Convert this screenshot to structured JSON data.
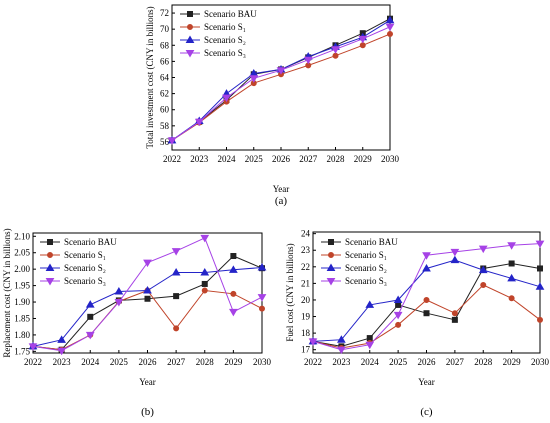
{
  "chart_data": [
    {
      "type": "line",
      "panel_label": "(a)",
      "xlabel": "Year",
      "ylabel": "Total investment cost (CNY in billions)",
      "x": [
        2022,
        2023,
        2024,
        2025,
        2026,
        2027,
        2028,
        2029,
        2030
      ],
      "ylim": [
        55,
        73
      ],
      "yticks": [
        56,
        58,
        60,
        62,
        64,
        66,
        68,
        70,
        72
      ],
      "legend_position": "top-left",
      "series": [
        {
          "name": "Scenario BAU",
          "color": "#222222",
          "marker": "square",
          "values": [
            56.2,
            58.5,
            61.2,
            64.4,
            65.0,
            66.5,
            68.0,
            69.5,
            71.3
          ]
        },
        {
          "name": "Scenario S₁",
          "color": "#c0442a",
          "marker": "circle",
          "values": [
            56.2,
            58.4,
            61.0,
            63.3,
            64.4,
            65.5,
            66.7,
            68.0,
            69.4
          ]
        },
        {
          "name": "Scenario S₂",
          "color": "#2424c8",
          "marker": "triangle-up",
          "values": [
            56.2,
            58.6,
            62.0,
            64.5,
            65.0,
            66.6,
            67.8,
            69.0,
            71.1
          ]
        },
        {
          "name": "Scenario S₃",
          "color": "#a642e6",
          "marker": "triangle-down",
          "values": [
            56.2,
            58.5,
            61.5,
            63.9,
            64.9,
            66.2,
            67.5,
            68.8,
            70.3
          ]
        }
      ]
    },
    {
      "type": "line",
      "panel_label": "(b)",
      "xlabel": "Year",
      "ylabel": "Replacement cost (CNY in billions)",
      "x": [
        2022,
        2023,
        2024,
        2025,
        2026,
        2027,
        2028,
        2029,
        2030
      ],
      "ylim": [
        1.745,
        2.11
      ],
      "yticks": [
        "1.75",
        "1.80",
        "1.85",
        "1.90",
        "1.95",
        "2.00",
        "2.05",
        "2.10"
      ],
      "legend_position": "top-left",
      "series": [
        {
          "name": "Scenario BAU",
          "color": "#222222",
          "marker": "square",
          "values": [
            1.765,
            1.755,
            1.855,
            1.905,
            1.91,
            1.918,
            1.955,
            2.04,
            2.003
          ]
        },
        {
          "name": "Scenario S₁",
          "color": "#c0442a",
          "marker": "circle",
          "values": [
            1.765,
            1.755,
            1.8,
            1.902,
            1.935,
            1.82,
            1.935,
            1.925,
            1.88
          ]
        },
        {
          "name": "Scenario S₂",
          "color": "#2424c8",
          "marker": "triangle-up",
          "values": [
            1.765,
            1.785,
            1.892,
            1.932,
            1.935,
            1.99,
            1.99,
            1.998,
            2.005
          ]
        },
        {
          "name": "Scenario S₃",
          "color": "#a642e6",
          "marker": "triangle-down",
          "values": [
            1.765,
            1.752,
            1.8,
            1.9,
            2.02,
            2.055,
            2.095,
            1.87,
            1.915
          ]
        }
      ]
    },
    {
      "type": "line",
      "panel_label": "(c)",
      "xlabel": "Year",
      "ylabel": "Fuel cost (CNY in billions)",
      "x": [
        2022,
        2023,
        2024,
        2025,
        2026,
        2027,
        2028,
        2029,
        2030
      ],
      "ylim": [
        16.8,
        24.1
      ],
      "yticks": [
        17,
        18,
        19,
        20,
        21,
        22,
        23,
        24
      ],
      "legend_position": "top-left",
      "series": [
        {
          "name": "Scenario BAU",
          "color": "#222222",
          "marker": "square",
          "values": [
            17.5,
            17.2,
            17.7,
            19.7,
            19.2,
            18.8,
            21.9,
            22.2,
            21.9
          ]
        },
        {
          "name": "Scenario S₁",
          "color": "#c0442a",
          "marker": "circle",
          "values": [
            17.5,
            17.1,
            17.4,
            18.5,
            20.0,
            19.2,
            20.9,
            20.1,
            18.8
          ]
        },
        {
          "name": "Scenario S₂",
          "color": "#2424c8",
          "marker": "triangle-up",
          "values": [
            17.5,
            17.6,
            19.7,
            20.0,
            21.9,
            22.4,
            21.8,
            21.3,
            20.8
          ]
        },
        {
          "name": "Scenario S₃",
          "color": "#a642e6",
          "marker": "triangle-down",
          "values": [
            17.5,
            17.0,
            17.3,
            19.1,
            22.7,
            22.9,
            23.1,
            23.3,
            23.4
          ]
        }
      ]
    }
  ]
}
